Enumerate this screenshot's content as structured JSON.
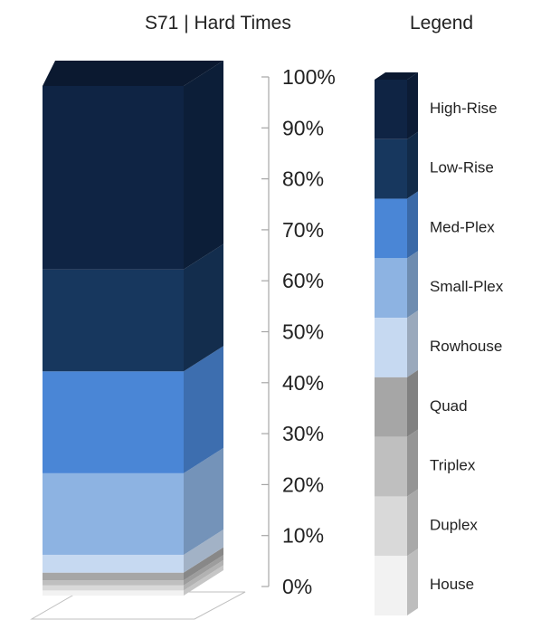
{
  "chart_data": {
    "type": "bar",
    "title": "S71 | Hard Times",
    "legend_title": "Legend",
    "legend_position": "right",
    "stacked": true,
    "normalized": true,
    "categories": [
      "S71 | Hard Times"
    ],
    "ylim": [
      0,
      100
    ],
    "yticks": [
      "0%",
      "10%",
      "20%",
      "30%",
      "40%",
      "50%",
      "60%",
      "70%",
      "80%",
      "90%",
      "100%"
    ],
    "series": [
      {
        "name": "House",
        "value": 1.0,
        "color": "#f2f2f2"
      },
      {
        "name": "Duplex",
        "value": 1.0,
        "color": "#d9d9d9"
      },
      {
        "name": "Triplex",
        "value": 1.0,
        "color": "#bfbfbf"
      },
      {
        "name": "Quad",
        "value": 1.5,
        "color": "#a6a6a6"
      },
      {
        "name": "Rowhouse",
        "value": 3.5,
        "color": "#c6d9f1"
      },
      {
        "name": "Small-Plex",
        "value": 16.0,
        "color": "#8db3e2"
      },
      {
        "name": "Med-Plex",
        "value": 20.0,
        "color": "#4a86d6"
      },
      {
        "name": "Low-Rise",
        "value": 20.0,
        "color": "#17375e"
      },
      {
        "name": "High-Rise",
        "value": 36.0,
        "color": "#0f2444"
      }
    ]
  }
}
